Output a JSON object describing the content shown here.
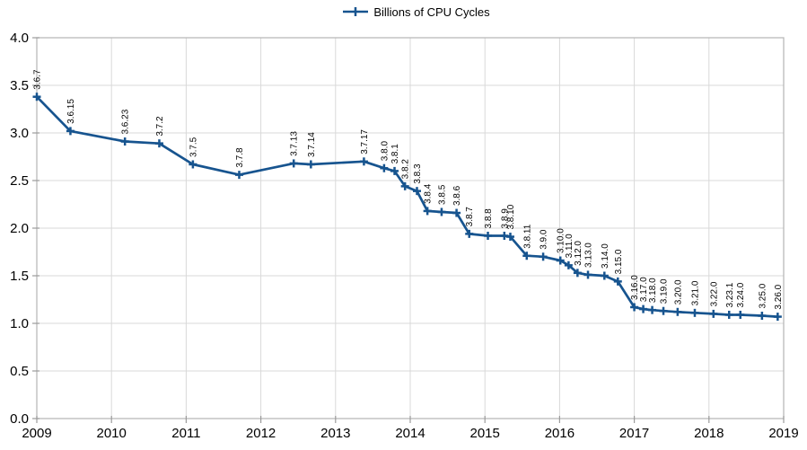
{
  "chart_data": {
    "type": "line",
    "title": "",
    "legend": {
      "position": "top-center",
      "entries": [
        "Billions of CPU Cycles"
      ]
    },
    "x_axis": {
      "label": "",
      "min": 2009,
      "max": 2019,
      "ticks": [
        "2009",
        "2010",
        "2011",
        "2012",
        "2013",
        "2014",
        "2015",
        "2016",
        "2017",
        "2018",
        "2019"
      ]
    },
    "y_axis": {
      "label": "",
      "min": 0.0,
      "max": 4.0,
      "step": 0.5,
      "ticks": [
        "0.0",
        "0.5",
        "1.0",
        "1.5",
        "2.0",
        "2.5",
        "3.0",
        "3.5",
        "4.0"
      ]
    },
    "grid": true,
    "colors": {
      "series": "#17548f",
      "grid": "#d9d9d9",
      "frame": "#b3b3b3",
      "tick": "#9b9b9b",
      "text": "#000000"
    },
    "series": [
      {
        "name": "Billions of CPU Cycles",
        "color": "#17548f",
        "marker": "plus",
        "points": [
          {
            "label": "3.6.7",
            "x": 2009.0,
            "y": 3.38
          },
          {
            "label": "3.6.15",
            "x": 2009.45,
            "y": 3.02
          },
          {
            "label": "3.6.23",
            "x": 2010.18,
            "y": 2.91
          },
          {
            "label": "3.7.2",
            "x": 2010.64,
            "y": 2.89
          },
          {
            "label": "3.7.5",
            "x": 2011.09,
            "y": 2.67
          },
          {
            "label": "3.7.8",
            "x": 2011.71,
            "y": 2.56
          },
          {
            "label": "3.7.13",
            "x": 2012.44,
            "y": 2.68
          },
          {
            "label": "3.7.14",
            "x": 2012.67,
            "y": 2.67
          },
          {
            "label": "3.7.17",
            "x": 2013.38,
            "y": 2.7
          },
          {
            "label": "3.8.0",
            "x": 2013.65,
            "y": 2.63
          },
          {
            "label": "3.8.1",
            "x": 2013.79,
            "y": 2.6
          },
          {
            "label": "3.8.2",
            "x": 2013.93,
            "y": 2.44
          },
          {
            "label": "3.8.3",
            "x": 2014.09,
            "y": 2.39
          },
          {
            "label": "3.8.4",
            "x": 2014.23,
            "y": 2.18
          },
          {
            "label": "3.8.5",
            "x": 2014.42,
            "y": 2.17
          },
          {
            "label": "3.8.6",
            "x": 2014.62,
            "y": 2.16
          },
          {
            "label": "3.8.7",
            "x": 2014.79,
            "y": 1.94
          },
          {
            "label": "3.8.8",
            "x": 2015.04,
            "y": 1.92
          },
          {
            "label": "3.8.9",
            "x": 2015.26,
            "y": 1.92
          },
          {
            "label": "3.8.10",
            "x": 2015.34,
            "y": 1.91
          },
          {
            "label": "3.8.11",
            "x": 2015.56,
            "y": 1.71
          },
          {
            "label": "3.9.0",
            "x": 2015.78,
            "y": 1.7
          },
          {
            "label": "3.10.0",
            "x": 2016.01,
            "y": 1.66
          },
          {
            "label": "3.11.0",
            "x": 2016.12,
            "y": 1.61
          },
          {
            "label": "3.12.0",
            "x": 2016.24,
            "y": 1.53
          },
          {
            "label": "3.13.0",
            "x": 2016.38,
            "y": 1.51
          },
          {
            "label": "3.14.0",
            "x": 2016.6,
            "y": 1.5
          },
          {
            "label": "3.15.0",
            "x": 2016.78,
            "y": 1.44
          },
          {
            "label": "3.16.0",
            "x": 2017.0,
            "y": 1.17
          },
          {
            "label": "3.17.0",
            "x": 2017.12,
            "y": 1.15
          },
          {
            "label": "3.18.0",
            "x": 2017.24,
            "y": 1.14
          },
          {
            "label": "3.19.0",
            "x": 2017.39,
            "y": 1.13
          },
          {
            "label": "3.20.0",
            "x": 2017.58,
            "y": 1.12
          },
          {
            "label": "3.21.0",
            "x": 2017.81,
            "y": 1.11
          },
          {
            "label": "3.22.0",
            "x": 2018.06,
            "y": 1.1
          },
          {
            "label": "3.23.1",
            "x": 2018.27,
            "y": 1.09
          },
          {
            "label": "3.24.0",
            "x": 2018.42,
            "y": 1.09
          },
          {
            "label": "3.25.0",
            "x": 2018.71,
            "y": 1.08
          },
          {
            "label": "3.26.0",
            "x": 2018.92,
            "y": 1.07
          }
        ]
      }
    ]
  }
}
